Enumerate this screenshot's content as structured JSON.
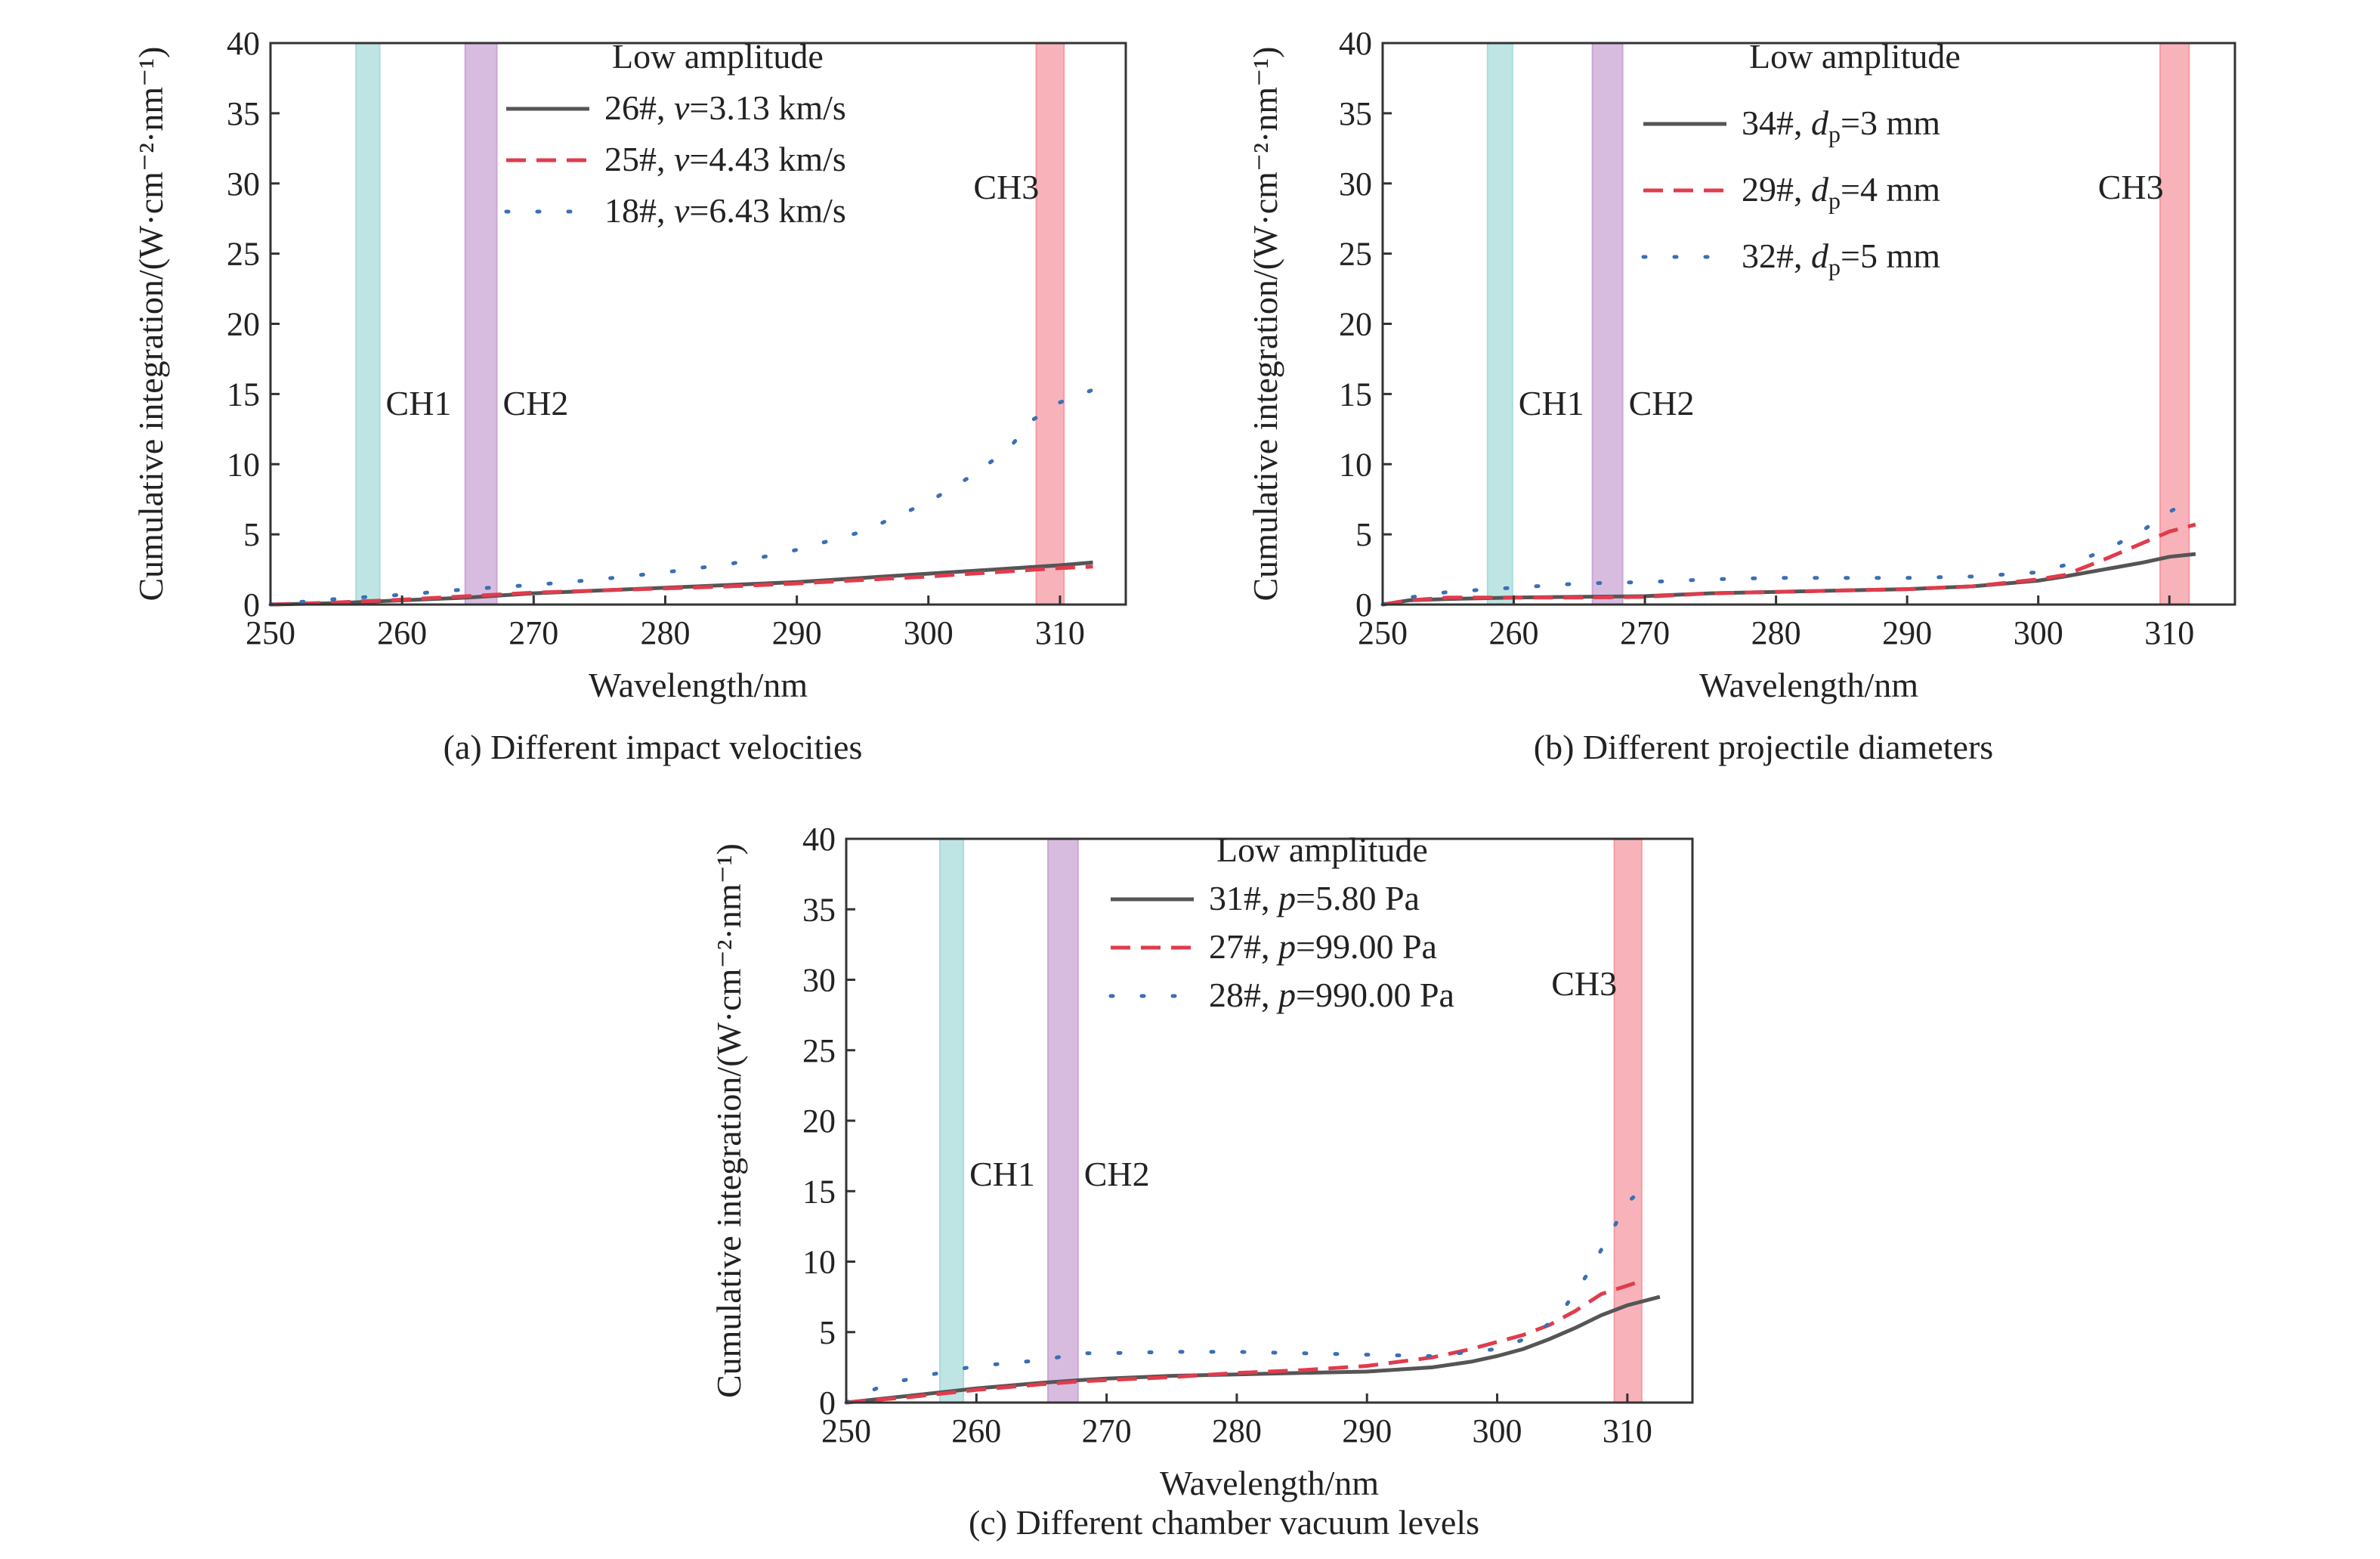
{
  "figure": {
    "chart_data": [
      {
        "type": "line",
        "caption": "(a) Different impact velocities",
        "xlabel": "Wavelength/nm",
        "ylabel": "Cumulative integration/(W·cm⁻²·nm⁻¹)",
        "xlim": [
          250,
          315
        ],
        "ylim": [
          0,
          40
        ],
        "xticks": [
          250,
          260,
          270,
          280,
          290,
          300,
          310
        ],
        "yticks": [
          0,
          5,
          10,
          15,
          20,
          25,
          30,
          35,
          40
        ],
        "legend_title": "Low amplitude",
        "legend_position": "top",
        "bands": [
          {
            "label": "CH1",
            "range": [
              256.5,
              258.3
            ],
            "color": "#a8dcd9"
          },
          {
            "label": "CH2",
            "range": [
              264.8,
              267.2
            ],
            "color": "#cba5d6"
          },
          {
            "label": "CH3",
            "range": [
              308.2,
              310.3
            ],
            "color": "#f59aa3"
          }
        ],
        "series": [
          {
            "name": "26#, v=3.13 km/s",
            "style": "solid",
            "color": "#555555",
            "x": [
              250,
              255,
              260,
              265,
              270,
              275,
              280,
              285,
              290,
              295,
              300,
              305,
              310,
              312.5
            ],
            "y": [
              0,
              0.1,
              0.3,
              0.5,
              0.8,
              1.0,
              1.2,
              1.4,
              1.6,
              1.9,
              2.2,
              2.5,
              2.8,
              3.0
            ]
          },
          {
            "name": "25#, v=4.43 km/s",
            "style": "dashed",
            "color": "#e03c4c",
            "x": [
              250,
              255,
              260,
              265,
              270,
              275,
              280,
              285,
              290,
              295,
              300,
              305,
              310,
              312.5
            ],
            "y": [
              0,
              0.15,
              0.35,
              0.6,
              0.85,
              1.0,
              1.15,
              1.3,
              1.5,
              1.75,
              2.0,
              2.3,
              2.6,
              2.7
            ]
          },
          {
            "name": "18#, v=6.43 km/s",
            "style": "dotted",
            "color": "#3a6fb5",
            "x": [
              250,
              255,
              260,
              265,
              270,
              275,
              280,
              285,
              290,
              295,
              300,
              303,
              306,
              308,
              310,
              312.5
            ],
            "y": [
              0,
              0.4,
              0.7,
              1.1,
              1.4,
              1.8,
              2.3,
              2.9,
              3.9,
              5.2,
              7.3,
              9.0,
              11.0,
              13.2,
              14.4,
              15.3
            ]
          }
        ]
      },
      {
        "type": "line",
        "caption": "(b) Different projectile diameters",
        "xlabel": "Wavelength/nm",
        "ylabel": "Cumulative integration/(W·cm⁻²·nm⁻¹)",
        "xlim": [
          250,
          315
        ],
        "ylim": [
          0,
          40
        ],
        "xticks": [
          250,
          260,
          270,
          280,
          290,
          300,
          310
        ],
        "yticks": [
          0,
          5,
          10,
          15,
          20,
          25,
          30,
          35,
          40
        ],
        "legend_title": "Low amplitude",
        "legend_position": "top",
        "bands": [
          {
            "label": "CH1",
            "range": [
              258.0,
              259.9
            ],
            "color": "#a8dcd9"
          },
          {
            "label": "CH2",
            "range": [
              266.0,
              268.3
            ],
            "color": "#cba5d6"
          },
          {
            "label": "CH3",
            "range": [
              309.3,
              311.5
            ],
            "color": "#f59aa3"
          }
        ],
        "series": [
          {
            "name": "34#, dp=3 mm",
            "style": "solid",
            "color": "#555555",
            "x": [
              250,
              252,
              255,
              260,
              265,
              270,
              275,
              280,
              285,
              290,
              295,
              300,
              302,
              305,
              308,
              310,
              312
            ],
            "y": [
              0,
              0.3,
              0.4,
              0.5,
              0.55,
              0.6,
              0.8,
              0.9,
              1.0,
              1.1,
              1.3,
              1.7,
              2.0,
              2.5,
              3.0,
              3.4,
              3.6
            ]
          },
          {
            "name": "29#, dp=4 mm",
            "style": "dashed",
            "color": "#e03c4c",
            "x": [
              250,
              252,
              255,
              260,
              265,
              270,
              275,
              280,
              285,
              290,
              295,
              300,
              302,
              305,
              308,
              310,
              312
            ],
            "y": [
              0,
              0.3,
              0.5,
              0.5,
              0.5,
              0.55,
              0.8,
              0.9,
              1.0,
              1.1,
              1.3,
              1.8,
              2.1,
              3.2,
              4.4,
              5.2,
              5.7
            ]
          },
          {
            "name": "32#, dp=5 mm",
            "style": "dotted",
            "color": "#3a6fb5",
            "x": [
              250,
              252,
              255,
              260,
              265,
              270,
              275,
              280,
              285,
              290,
              295,
              300,
              302,
              305,
              308,
              310,
              312
            ],
            "y": [
              0,
              0.5,
              0.9,
              1.2,
              1.5,
              1.6,
              1.8,
              1.9,
              1.9,
              1.9,
              2.0,
              2.3,
              2.8,
              3.8,
              5.3,
              6.6,
              7.6
            ]
          }
        ]
      },
      {
        "type": "line",
        "caption": "(c) Different chamber vacuum levels",
        "xlabel": "Wavelength/nm",
        "ylabel": "Cumulative integration/(W·cm⁻²·nm⁻¹)",
        "xlim": [
          250,
          315
        ],
        "ylim": [
          0,
          40
        ],
        "xticks": [
          250,
          260,
          270,
          280,
          290,
          300,
          310
        ],
        "yticks": [
          0,
          5,
          10,
          15,
          20,
          25,
          30,
          35,
          40
        ],
        "legend_title": "Low amplitude",
        "legend_position": "top",
        "bands": [
          {
            "label": "CH1",
            "range": [
              257.2,
              259.0
            ],
            "color": "#a8dcd9"
          },
          {
            "label": "CH2",
            "range": [
              265.5,
              267.8
            ],
            "color": "#cba5d6"
          },
          {
            "label": "CH3",
            "range": [
              309.0,
              311.1
            ],
            "color": "#f59aa3"
          }
        ],
        "series": [
          {
            "name": "31#, p=5.80 Pa",
            "style": "solid",
            "color": "#555555",
            "x": [
              250,
              255,
              260,
              265,
              268,
              270,
              275,
              280,
              285,
              290,
              295,
              298,
              300,
              302,
              304,
              306,
              308,
              310,
              312.5
            ],
            "y": [
              0,
              0.5,
              1.0,
              1.4,
              1.6,
              1.7,
              1.9,
              2.0,
              2.1,
              2.2,
              2.5,
              2.9,
              3.3,
              3.8,
              4.5,
              5.3,
              6.2,
              6.9,
              7.5
            ]
          },
          {
            "name": "27#, p=99.00 Pa",
            "style": "dashed",
            "color": "#e03c4c",
            "x": [
              250,
              255,
              260,
              265,
              268,
              270,
              275,
              280,
              285,
              290,
              295,
              298,
              300,
              302,
              304,
              306,
              308,
              310,
              311
            ],
            "y": [
              0,
              0.4,
              0.9,
              1.3,
              1.5,
              1.6,
              1.8,
              2.1,
              2.3,
              2.6,
              3.2,
              3.8,
              4.3,
              4.8,
              5.5,
              6.5,
              7.7,
              8.3,
              8.6
            ]
          },
          {
            "name": "28#, p=990.00 Pa",
            "style": "dotted",
            "color": "#3a6fb5",
            "x": [
              250,
              253,
              256,
              260,
              265,
              268,
              270,
              275,
              280,
              285,
              290,
              295,
              300,
              303,
              305,
              307,
              309,
              310,
              311,
              312
            ],
            "y": [
              0,
              1.3,
              1.9,
              2.6,
              3.0,
              3.5,
              3.5,
              3.6,
              3.6,
              3.5,
              3.4,
              3.3,
              3.8,
              4.8,
              6.5,
              9.2,
              12.5,
              14.2,
              15.0,
              16.0
            ]
          }
        ]
      }
    ]
  }
}
